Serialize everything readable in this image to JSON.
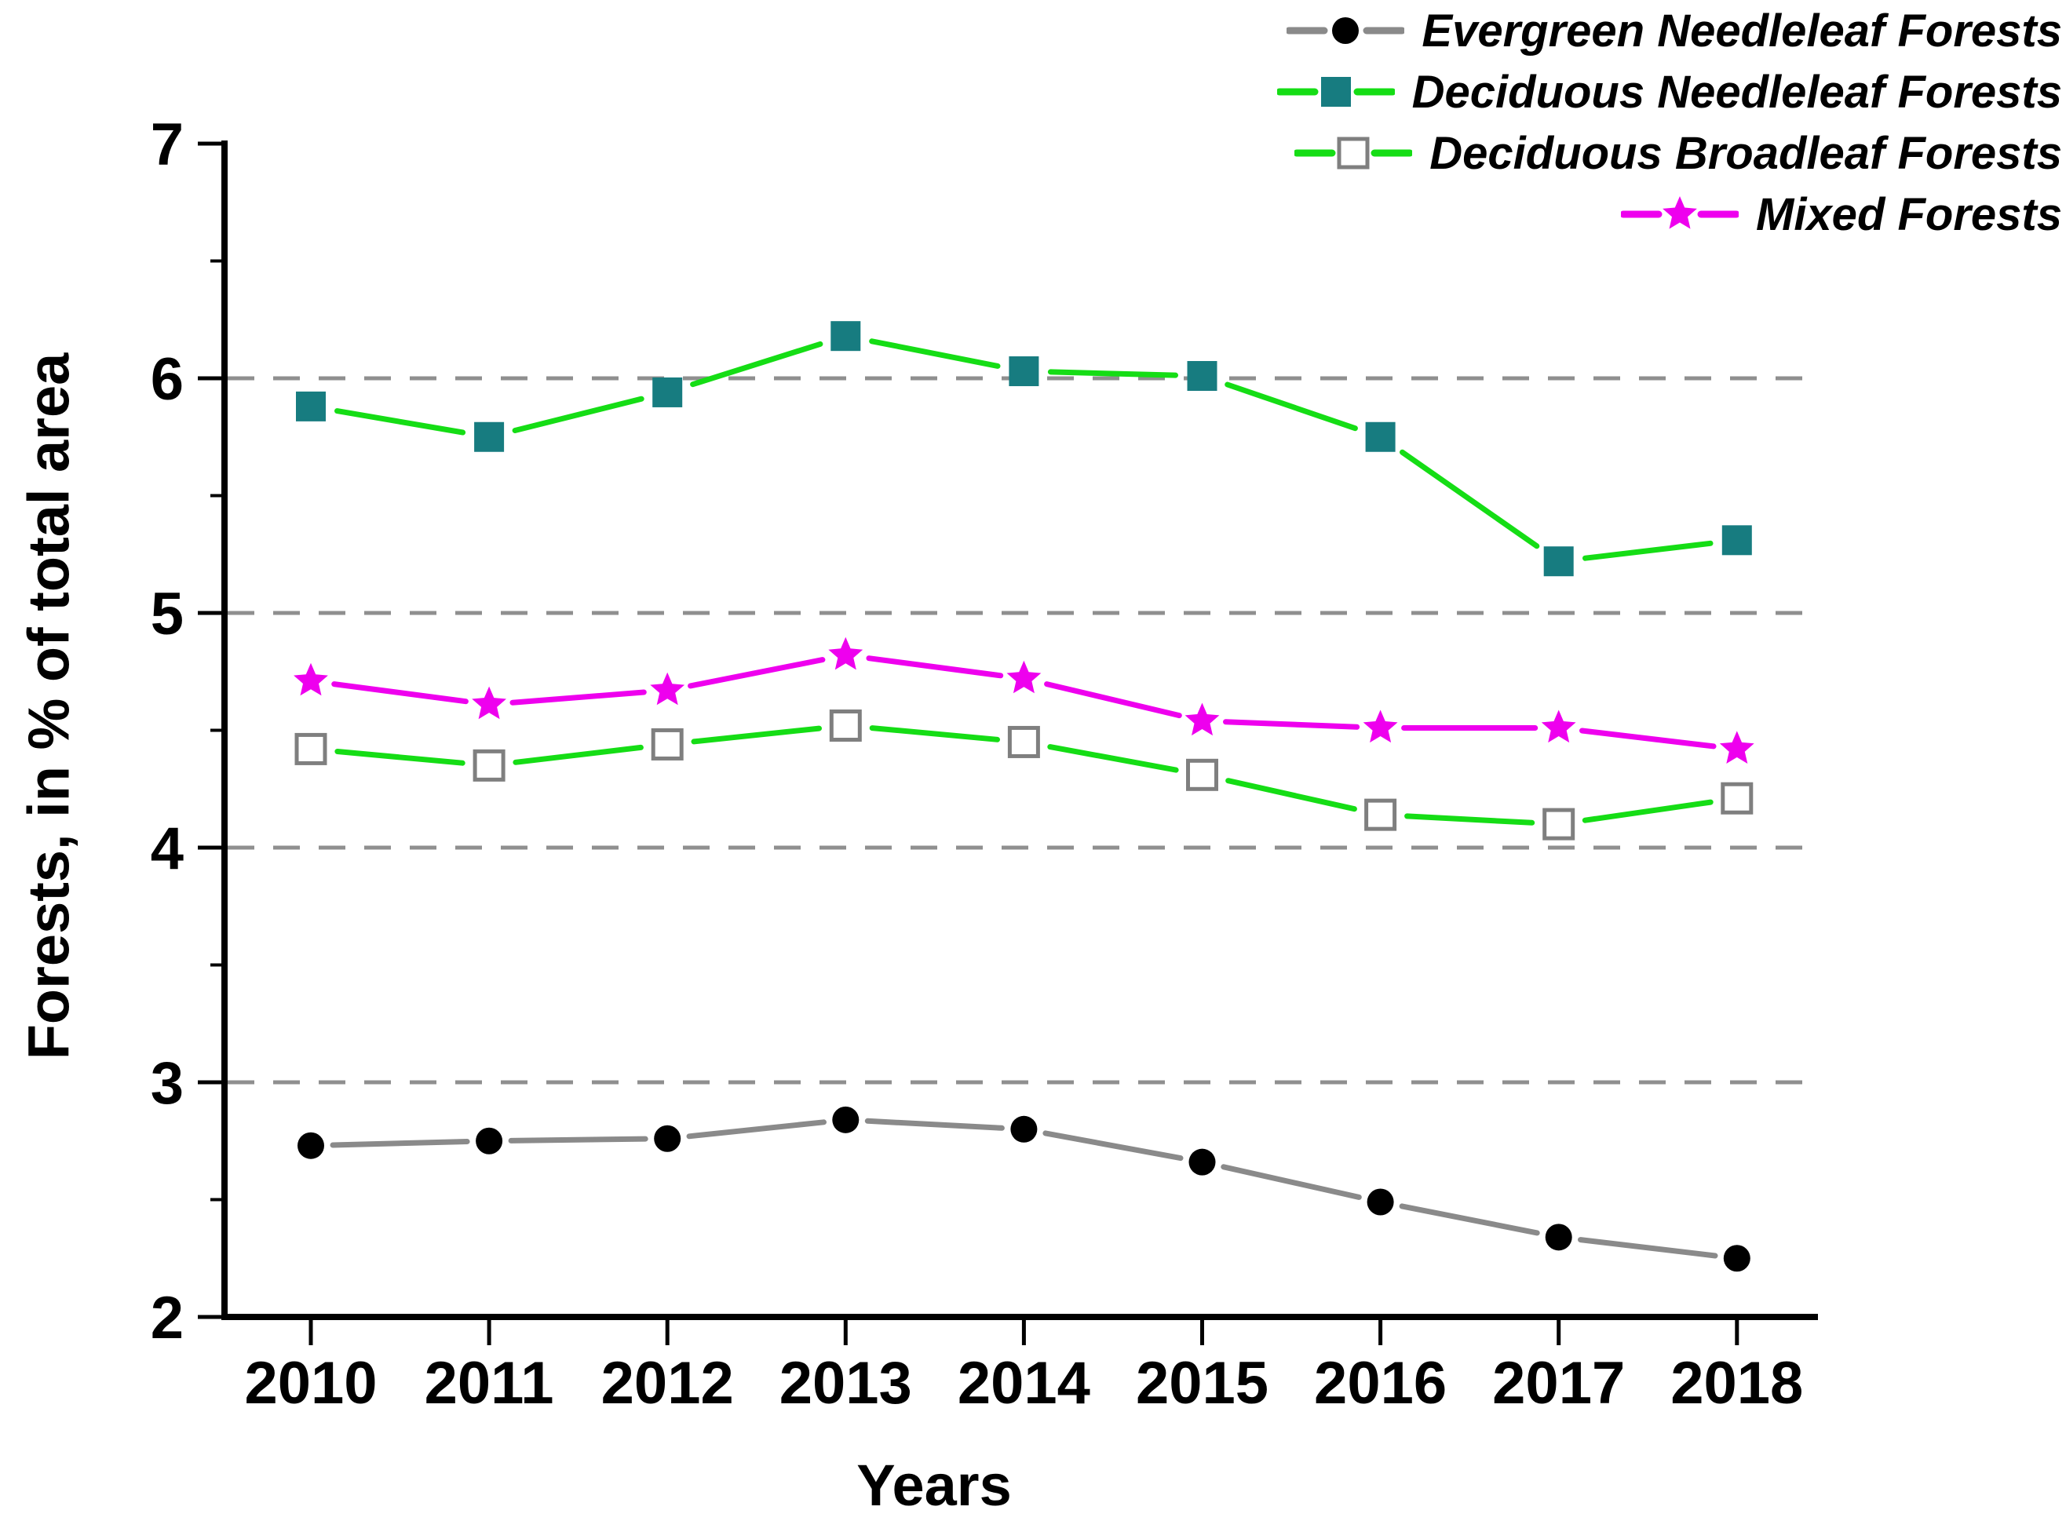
{
  "chart_data": {
    "type": "line",
    "title": "",
    "xlabel": "Years",
    "ylabel": "Forests, in % of total area",
    "x": [
      2010,
      2011,
      2012,
      2013,
      2014,
      2015,
      2016,
      2017,
      2018
    ],
    "ylim": [
      2,
      7
    ],
    "yticks": [
      2,
      3,
      4,
      5,
      6,
      7
    ],
    "y_minor_ticks": [
      2.5,
      3.5,
      4.5,
      5.5,
      6.5
    ],
    "grid_y": [
      3,
      4,
      5,
      6
    ],
    "grid_style": "dashed-horizontal",
    "legend_position": "top-right",
    "series": [
      {
        "name": "Evergreen Needleleaf Forests",
        "marker": "circle",
        "line_color": "#8a8a8a",
        "marker_color": "#000000",
        "values": [
          2.73,
          2.75,
          2.76,
          2.84,
          2.8,
          2.66,
          2.49,
          2.34,
          2.25
        ]
      },
      {
        "name": "Deciduous Needleleaf Forests",
        "marker": "square-filled",
        "line_color": "#15dd15",
        "marker_color": "#177c80",
        "values": [
          5.88,
          5.75,
          5.94,
          6.18,
          6.03,
          6.01,
          5.75,
          5.22,
          5.31
        ]
      },
      {
        "name": "Deciduous Broadleaf Forests",
        "marker": "square-open",
        "line_color": "#15dd15",
        "marker_color": "#ffffff",
        "marker_edge": "#7f7f7f",
        "values": [
          4.42,
          4.35,
          4.44,
          4.52,
          4.45,
          4.31,
          4.14,
          4.1,
          4.21
        ]
      },
      {
        "name": "Mixed Forests",
        "marker": "star",
        "line_color": "#ee00ee",
        "marker_color": "#ee00ee",
        "values": [
          4.71,
          4.61,
          4.67,
          4.82,
          4.72,
          4.54,
          4.51,
          4.51,
          4.42
        ]
      }
    ],
    "colors": {
      "grid": "#8f8f8f",
      "axis": "#000000",
      "text": "#000000",
      "background": "#ffffff"
    }
  }
}
